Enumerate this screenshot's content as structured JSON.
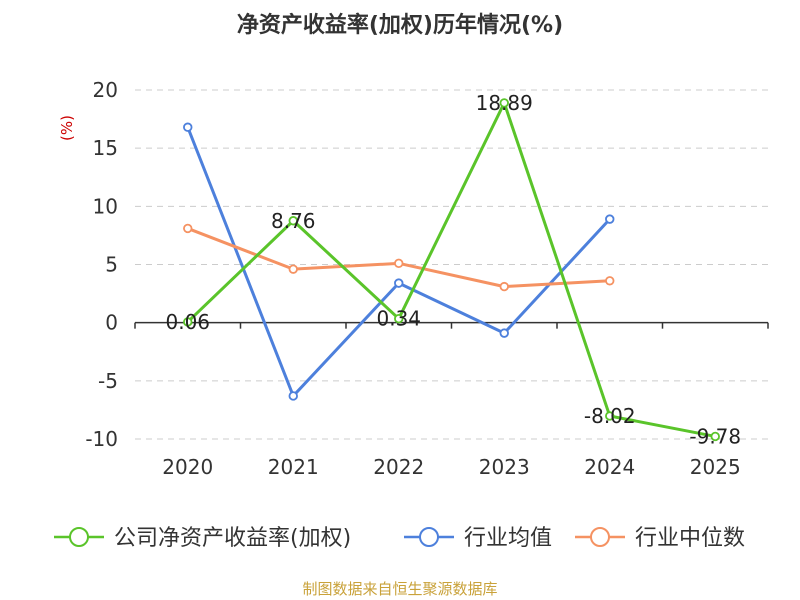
{
  "chart_data": {
    "type": "line",
    "title": "净资产收益率(加权)历年情况(%)",
    "ylabel": "(%)",
    "xlabel": "",
    "ylim": [
      -10,
      20
    ],
    "yticks": [
      20,
      15,
      10,
      5,
      0,
      -5,
      -10
    ],
    "categories": [
      "2020",
      "2021",
      "2022",
      "2023",
      "2024",
      "2025"
    ],
    "grid": true,
    "legend": "bottom",
    "series": [
      {
        "name": "公司净资产收益率(加权)",
        "color": "#5ac42a",
        "values": [
          0.06,
          8.76,
          0.34,
          18.89,
          -8.02,
          -9.78
        ],
        "labels": [
          "0.06",
          "8.76",
          "0.34",
          "18.89",
          "-8.02",
          "-9.78"
        ]
      },
      {
        "name": "行业均值",
        "color": "#4d80dc",
        "values": [
          16.8,
          -6.3,
          3.4,
          -0.9,
          8.9,
          null
        ]
      },
      {
        "name": "行业中位数",
        "color": "#f59262",
        "values": [
          8.1,
          4.6,
          5.1,
          3.1,
          3.6,
          null
        ]
      }
    ],
    "source": "制图数据来自恒生聚源数据库",
    "colors": {
      "axis_label": "#cc0000",
      "source": "#c9a23a",
      "grid": "#cccccc",
      "text": "#333333"
    }
  }
}
